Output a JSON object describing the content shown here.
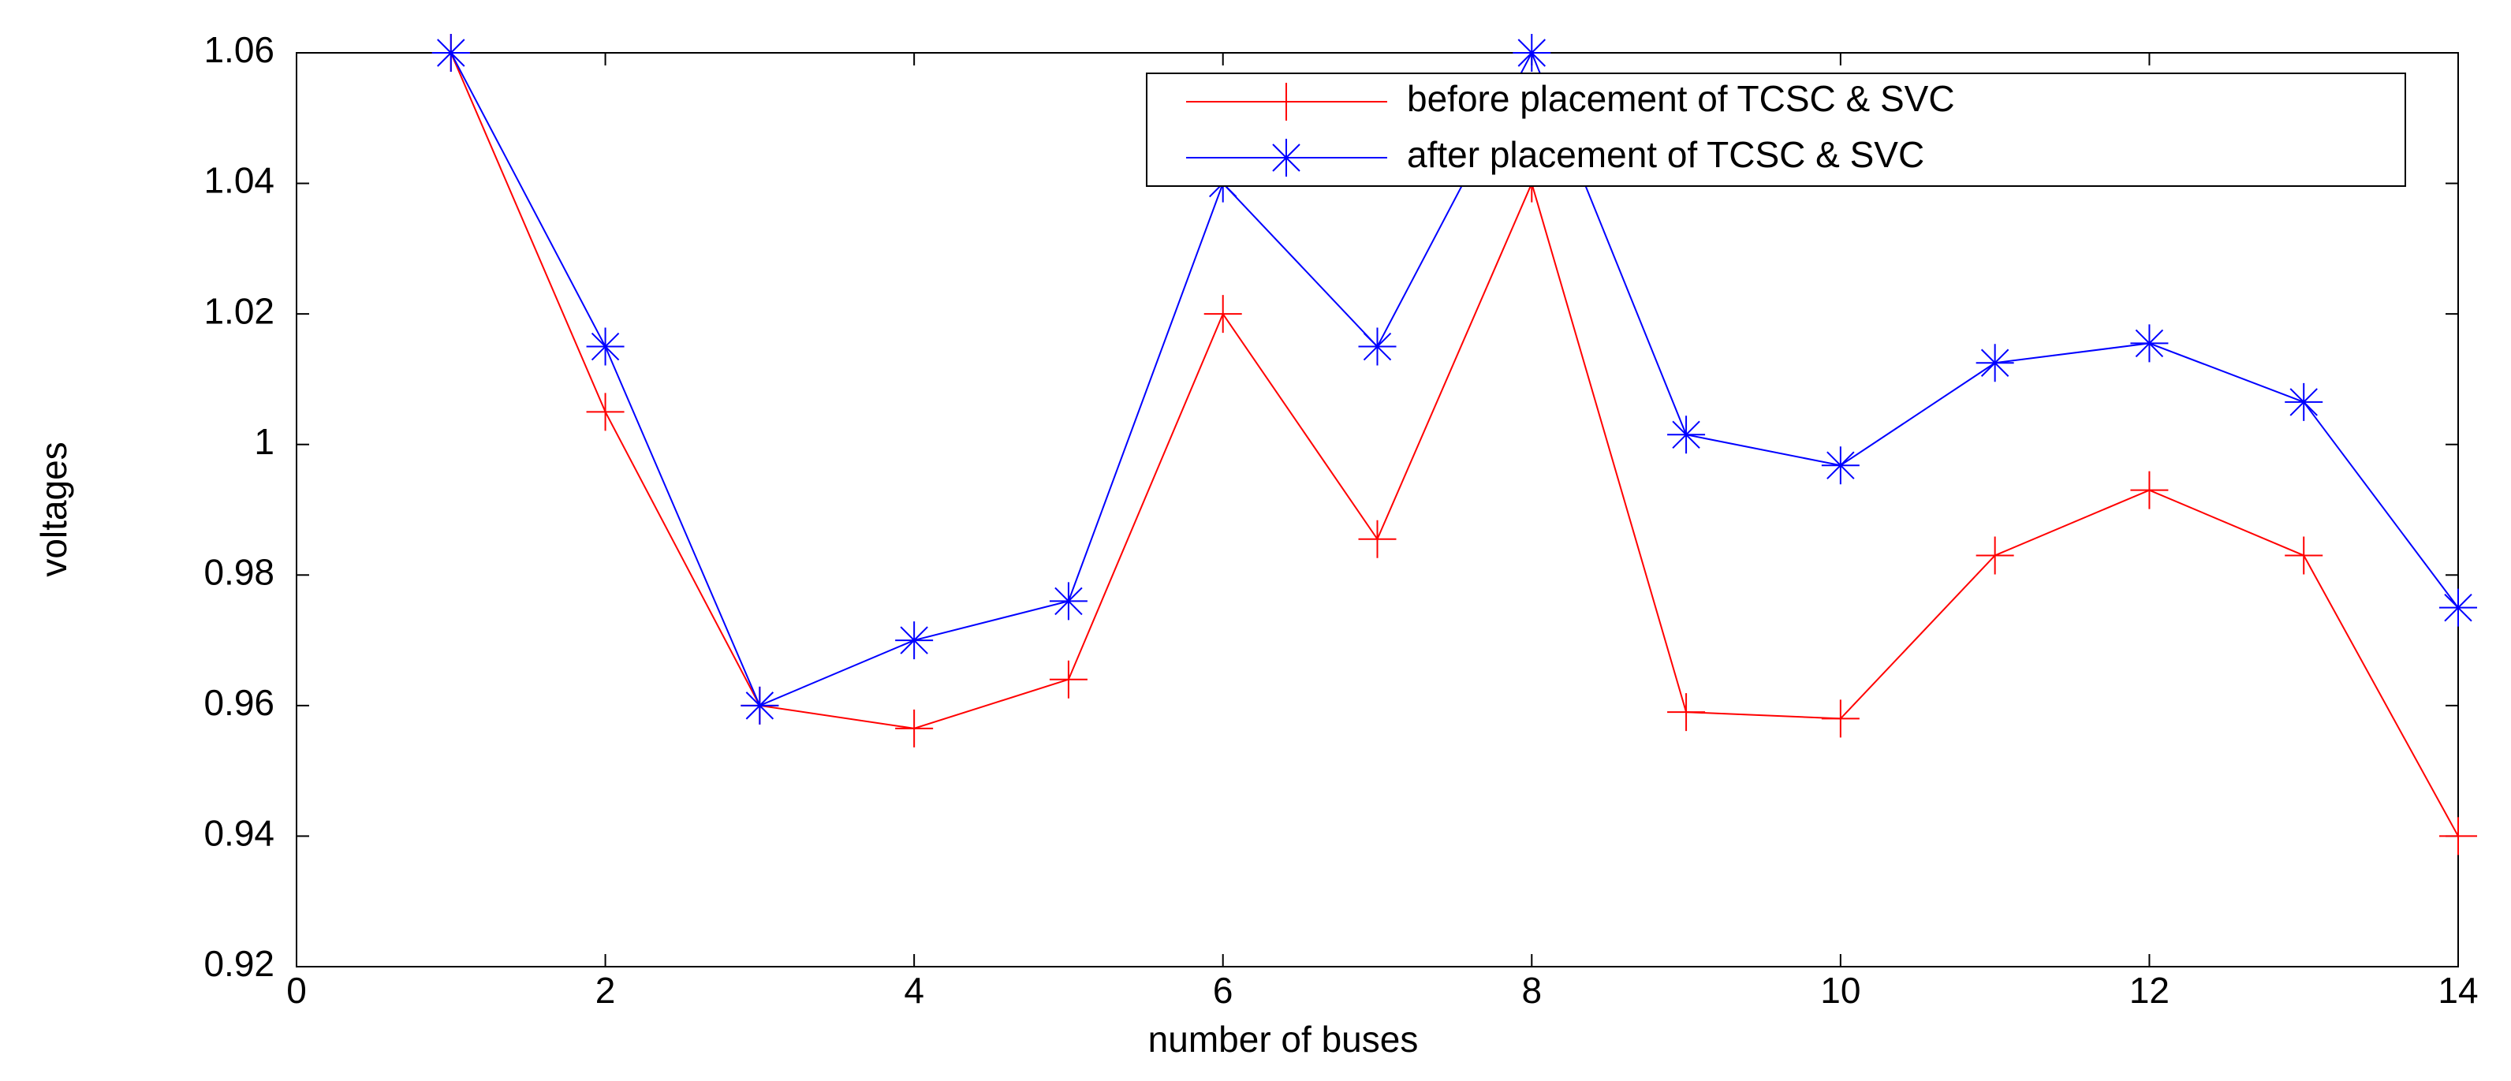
{
  "chart_data": {
    "type": "line",
    "x": [
      1,
      2,
      3,
      4,
      5,
      6,
      7,
      8,
      9,
      10,
      11,
      12,
      13,
      14
    ],
    "series": [
      {
        "name": "before placement of TCSC & SVC",
        "color": "#ff0000",
        "marker": "+",
        "values": [
          1.06,
          1.005,
          0.96,
          0.9565,
          0.964,
          1.02,
          0.9855,
          1.04,
          0.959,
          0.958,
          0.983,
          0.993,
          0.983,
          0.94
        ]
      },
      {
        "name": "after placement of TCSC & SVC",
        "color": "#0000ff",
        "marker": "*",
        "values": [
          1.06,
          1.015,
          0.96,
          0.97,
          0.976,
          1.04,
          1.015,
          1.06,
          1.0015,
          0.9968,
          1.0125,
          1.0155,
          1.0065,
          0.975
        ]
      }
    ],
    "xlabel": "number of buses",
    "ylabel": "voltages",
    "xlim": [
      0,
      14
    ],
    "xticks": [
      0,
      2,
      4,
      6,
      8,
      10,
      12,
      14
    ],
    "ylim": [
      0.92,
      1.06
    ],
    "yticks": [
      0.92,
      0.94,
      0.96,
      0.98,
      1,
      1.02,
      1.04,
      1.06
    ],
    "legend": "top-right"
  }
}
